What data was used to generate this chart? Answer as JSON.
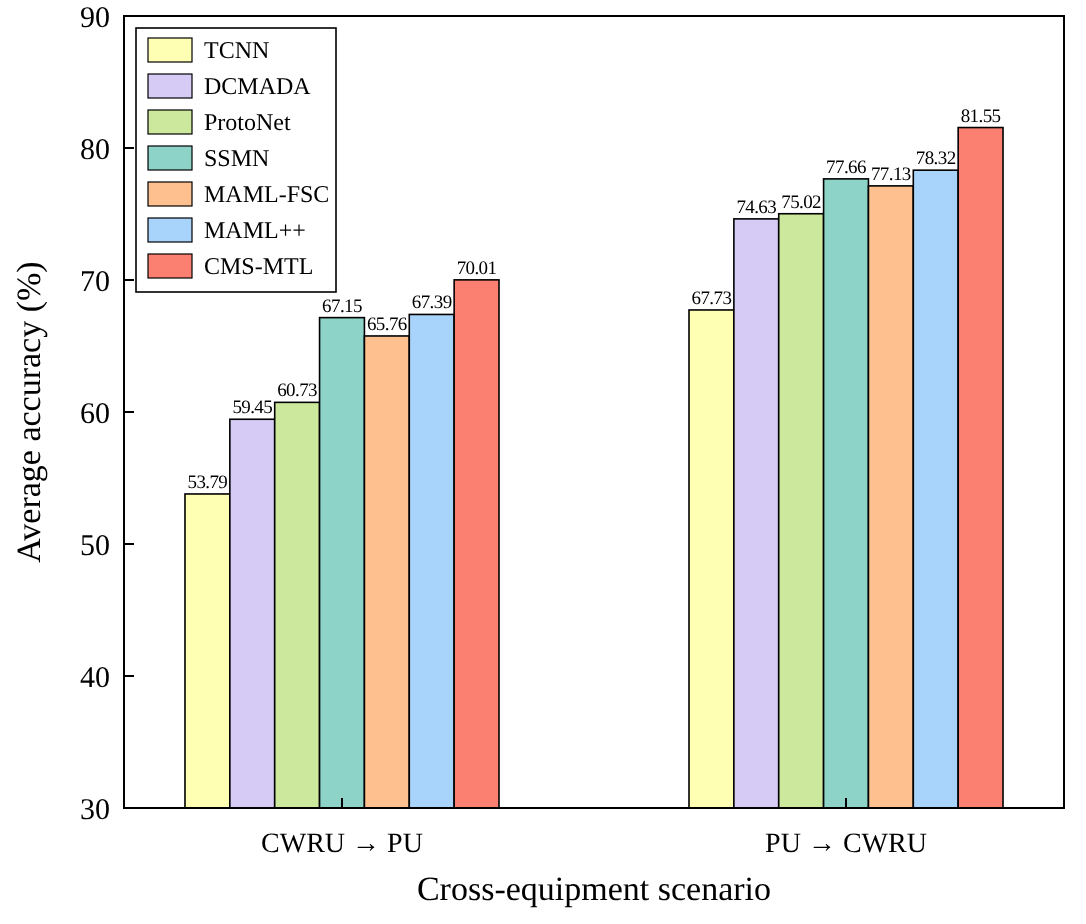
{
  "chart_data": {
    "type": "bar",
    "xlabel": "Cross-equipment scenario",
    "ylabel": "Average accuracy (%)",
    "categories": [
      "CWRU → PU",
      "PU → CWRU"
    ],
    "series": [
      {
        "name": "TCNN",
        "color": "#ffffb3",
        "values": [
          53.79,
          67.73
        ]
      },
      {
        "name": "DCMADA",
        "color": "#d5cbf5",
        "values": [
          59.45,
          74.63
        ]
      },
      {
        "name": "ProtoNet",
        "color": "#cbe89c",
        "values": [
          60.73,
          75.02
        ]
      },
      {
        "name": "SSMN",
        "color": "#8dd3c7",
        "values": [
          67.15,
          77.66
        ]
      },
      {
        "name": "MAML-FSC",
        "color": "#fdc08e",
        "values": [
          65.76,
          77.13
        ]
      },
      {
        "name": "MAML++",
        "color": "#a8d3fa",
        "values": [
          67.39,
          78.32
        ]
      },
      {
        "name": "CMS-MTL",
        "color": "#fb8072",
        "values": [
          70.01,
          81.55
        ]
      }
    ],
    "ylim": [
      30,
      90
    ],
    "yticks": [
      30,
      40,
      50,
      60,
      70,
      80,
      90
    ],
    "data_labels": true,
    "legend": "top left",
    "grid": false
  }
}
